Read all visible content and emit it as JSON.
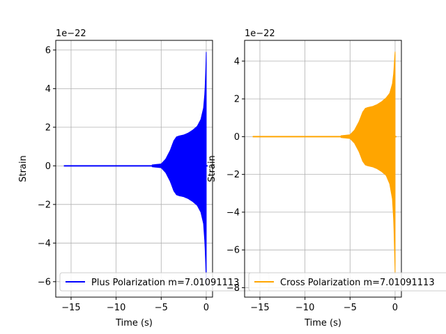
{
  "chart_data": [
    {
      "type": "line",
      "offset_label": "1e−22",
      "xlabel": "Time (s)",
      "ylabel": "Strain",
      "xlim": [
        -16.7,
        0.7
      ],
      "ylim": [
        -6.8,
        6.5
      ],
      "xticks": [
        -15,
        -10,
        -5,
        0
      ],
      "yticks": [
        -6,
        -4,
        -2,
        0,
        2,
        4,
        6
      ],
      "xtick_labels": [
        "−15",
        "−10",
        "−5",
        "0"
      ],
      "ytick_labels": [
        "−6",
        "−4",
        "−2",
        "0",
        "2",
        "4",
        "6"
      ],
      "grid": true,
      "legend_position": "lower-left",
      "series": [
        {
          "name": "Plus Polarization m=7.01091113",
          "color": "#0000ff",
          "x_start": -15.8,
          "x_end": 0.0,
          "envelope_x": [
            -15.8,
            -6.0,
            -5.0,
            -4.5,
            -4.0,
            -3.6,
            -3.3,
            -3.0,
            -2.5,
            -2.0,
            -1.5,
            -1.0,
            -0.6,
            -0.3,
            -0.15,
            -0.05,
            0.0
          ],
          "envelope_y": [
            0.05,
            0.05,
            0.1,
            0.35,
            0.8,
            1.3,
            1.5,
            1.55,
            1.6,
            1.7,
            1.85,
            2.05,
            2.4,
            3.0,
            3.8,
            5.0,
            5.9
          ],
          "envelope_y_neg": [
            -0.05,
            -0.05,
            -0.1,
            -0.35,
            -0.8,
            -1.3,
            -1.5,
            -1.55,
            -1.6,
            -1.7,
            -1.85,
            -2.05,
            -2.4,
            -3.0,
            -4.0,
            -5.2,
            -6.2
          ]
        }
      ]
    },
    {
      "type": "line",
      "offset_label": "1e−22",
      "xlabel": "Time (s)",
      "ylabel": "Strain",
      "xlim": [
        -16.7,
        0.7
      ],
      "ylim": [
        -8.5,
        5.1
      ],
      "xticks": [
        -15,
        -10,
        -5,
        0
      ],
      "yticks": [
        -8,
        -6,
        -4,
        -2,
        0,
        2,
        4
      ],
      "xtick_labels": [
        "−15",
        "−10",
        "−5",
        "0"
      ],
      "ytick_labels": [
        "−8",
        "−6",
        "−4",
        "−2",
        "0",
        "2",
        "4"
      ],
      "grid": true,
      "legend_position": "lower-left",
      "series": [
        {
          "name": "Cross Polarization m=7.01091113",
          "color": "#ffa500",
          "x_start": -15.8,
          "x_end": 0.0,
          "envelope_x": [
            -15.8,
            -6.0,
            -5.0,
            -4.5,
            -4.0,
            -3.6,
            -3.3,
            -3.0,
            -2.5,
            -2.0,
            -1.5,
            -1.0,
            -0.6,
            -0.3,
            -0.15,
            -0.05,
            0.0
          ],
          "envelope_y": [
            0.05,
            0.05,
            0.1,
            0.35,
            0.8,
            1.3,
            1.5,
            1.55,
            1.6,
            1.7,
            1.85,
            2.05,
            2.3,
            2.8,
            3.4,
            4.2,
            4.5
          ],
          "envelope_y_neg": [
            -0.05,
            -0.05,
            -0.1,
            -0.35,
            -0.8,
            -1.3,
            -1.5,
            -1.55,
            -1.6,
            -1.7,
            -1.85,
            -2.05,
            -2.5,
            -3.3,
            -4.5,
            -6.3,
            -7.3
          ]
        }
      ]
    }
  ]
}
